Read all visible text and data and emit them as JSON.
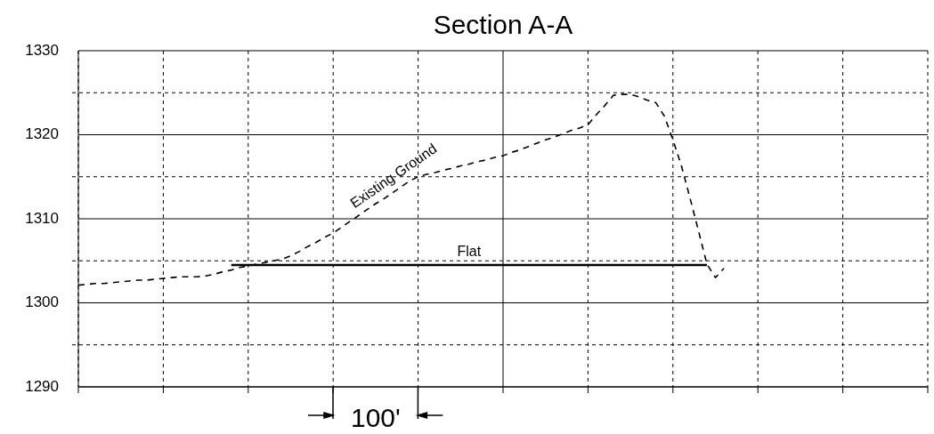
{
  "chart_data": {
    "type": "line",
    "title": "Section A-A",
    "categories": [
      null,
      null,
      null,
      null,
      null,
      null,
      null,
      null,
      null,
      null,
      null,
      null,
      null,
      null,
      null,
      null,
      null,
      null,
      null,
      null,
      null,
      null,
      null,
      null,
      null,
      null,
      null,
      null,
      null,
      null,
      null,
      null,
      null,
      null,
      null,
      null,
      null,
      null,
      null,
      null,
      null,
      null,
      null,
      null,
      null,
      null,
      null,
      null,
      null,
      null,
      null,
      null,
      null,
      null,
      null,
      null,
      null,
      null,
      null,
      null,
      null,
      null,
      null,
      null,
      null,
      null,
      null,
      null,
      null,
      null,
      null,
      null,
      null,
      null,
      null,
      null,
      null,
      null,
      null,
      null,
      null,
      null,
      null,
      null,
      null,
      null,
      null,
      null,
      null,
      null,
      null,
      null,
      null,
      null,
      null,
      null,
      null,
      null,
      null,
      null,
      null
    ],
    "ylim": [
      1290,
      1330
    ],
    "yticks": [
      1290,
      {
        "value": 1295,
        "label": null
      },
      1300,
      {
        "value": 1305,
        "label": null
      },
      1310,
      {
        "value": 1315,
        "label": null
      },
      1320,
      {
        "value": 1325,
        "label": null
      },
      1330
    ],
    "tick_labels": "y",
    "grid": true,
    "legend": false,
    "annotations": [
      "100'"
    ],
    "series": [
      {
        "name": "Existing Ground",
        "color": "#000000",
        "line_style": "dashed",
        "values": [
          1302.1,
          1302.2,
          1302.3,
          1302.3,
          1302.4,
          1302.5,
          1302.6,
          1302.7,
          1302.7,
          1302.8,
          1302.9,
          1303.0,
          1303.1,
          1303.1,
          1303.1,
          1303.2,
          1303.4,
          1303.7,
          1303.9,
          1304.2,
          1304.4,
          1304.6,
          1304.8,
          1305.0,
          1305.2,
          1305.6,
          1306.1,
          1306.7,
          1307.2,
          1307.8,
          1308.3,
          1309.0,
          1309.7,
          1310.4,
          1311.1,
          1311.8,
          1312.4,
          1313.1,
          1313.8,
          1314.5,
          1315.0,
          1315.3,
          1315.5,
          1315.8,
          1316.0,
          1316.3,
          1316.5,
          1316.8,
          1317.0,
          1317.3,
          1317.5,
          1317.9,
          1318.2,
          1318.6,
          1319.0,
          1319.4,
          1319.7,
          1320.1,
          1320.5,
          1320.8,
          1321.2,
          1322.4,
          1323.5,
          1324.7,
          1324.8,
          1324.8,
          1324.5,
          1324.1,
          1323.8,
          1322.2,
          1319.4,
          1316.3,
          1312.5,
          1308.6,
          1304.6,
          1303.0,
          1304.1,
          null,
          null,
          null,
          null,
          null,
          null,
          null,
          null,
          null,
          null,
          null,
          null,
          null,
          null,
          null,
          null,
          null,
          null,
          null,
          null,
          null,
          null,
          null,
          null
        ]
      },
      {
        "name": "Flat",
        "color": "#000000",
        "line_style": "solid",
        "values": [
          null,
          null,
          null,
          null,
          null,
          null,
          null,
          null,
          null,
          null,
          null,
          null,
          null,
          null,
          null,
          null,
          null,
          null,
          1304.5,
          1304.5,
          1304.5,
          1304.5,
          1304.5,
          1304.5,
          1304.5,
          1304.5,
          1304.5,
          1304.5,
          1304.5,
          1304.5,
          1304.5,
          1304.5,
          1304.5,
          1304.5,
          1304.5,
          1304.5,
          1304.5,
          1304.5,
          1304.5,
          1304.5,
          1304.5,
          1304.5,
          1304.5,
          1304.5,
          1304.5,
          1304.5,
          1304.5,
          1304.5,
          1304.5,
          1304.5,
          1304.5,
          1304.5,
          1304.5,
          1304.5,
          1304.5,
          1304.5,
          1304.5,
          1304.5,
          1304.5,
          1304.5,
          1304.5,
          1304.5,
          1304.5,
          1304.5,
          1304.5,
          1304.5,
          1304.5,
          1304.5,
          1304.5,
          1304.5,
          1304.5,
          1304.5,
          1304.5,
          1304.5,
          1304.5,
          null,
          null,
          null,
          null,
          null,
          null,
          null,
          null,
          null,
          null,
          null,
          null,
          null,
          null,
          null,
          null,
          null,
          null,
          null,
          null,
          null,
          null,
          null,
          null,
          null,
          null
        ]
      }
    ]
  }
}
